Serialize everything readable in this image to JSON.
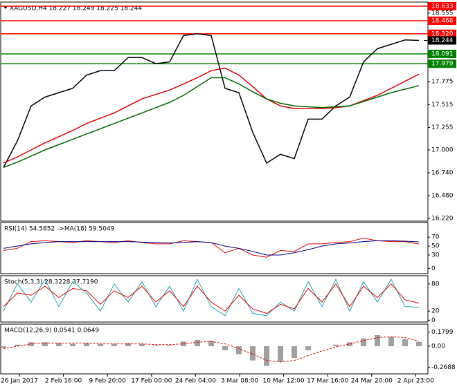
{
  "chart_data": [
    {
      "type": "line",
      "title": "XAGUSD,H4  18.227 18.249 18.225 18.244",
      "ylim": [
        16.19,
        18.68
      ],
      "yticks": [
        {
          "value": 16.22,
          "label": "16.220"
        },
        {
          "value": 16.48,
          "label": "16.480"
        },
        {
          "value": 16.74,
          "label": "16.740"
        },
        {
          "value": 17,
          "label": "17.000"
        },
        17.255,
        17.515,
        17.775,
        18.555
      ],
      "levels": [
        {
          "value": 18.633,
          "label": "18.633",
          "color": "#ff0000"
        },
        {
          "value": 18.468,
          "label": "18.468",
          "color": "#ff0000"
        },
        {
          "value": 18.32,
          "label": "18.320",
          "color": "#ff0000"
        },
        {
          "value": 18.091,
          "label": "18.091",
          "color": "#008000"
        },
        {
          "value": 17.979,
          "label": "17.979",
          "color": "#008000"
        }
      ],
      "price": 18.244,
      "series": [
        {
          "color": "#000000",
          "values": [
            16.8,
            17.1,
            17.5,
            17.6,
            17.65,
            17.7,
            17.85,
            17.9,
            17.9,
            18.05,
            18.05,
            17.98,
            18.0,
            18.3,
            18.32,
            18.3,
            17.7,
            17.65,
            17.2,
            16.85,
            16.95,
            16.9,
            17.35,
            17.35,
            17.5,
            17.6,
            18.0,
            18.15,
            18.2,
            18.25,
            18.244
          ]
        },
        {
          "color": "#e00000",
          "values": [
            16.85,
            16.92,
            17.0,
            17.08,
            17.15,
            17.22,
            17.3,
            17.36,
            17.42,
            17.5,
            17.58,
            17.63,
            17.68,
            17.75,
            17.82,
            17.9,
            17.93,
            17.85,
            17.72,
            17.58,
            17.5,
            17.47,
            17.47,
            17.47,
            17.48,
            17.5,
            17.56,
            17.62,
            17.7,
            17.78,
            17.86
          ]
        },
        {
          "color": "#006400",
          "values": [
            16.8,
            16.86,
            16.93,
            17.0,
            17.06,
            17.12,
            17.18,
            17.24,
            17.3,
            17.36,
            17.42,
            17.48,
            17.54,
            17.62,
            17.72,
            17.82,
            17.82,
            17.75,
            17.66,
            17.58,
            17.53,
            17.5,
            17.49,
            17.48,
            17.49,
            17.5,
            17.55,
            17.6,
            17.65,
            17.69,
            17.73
          ]
        }
      ]
    },
    {
      "type": "line",
      "title": "RSI(14) 54.5852  ->MA(18) 59.5049",
      "ylim": [
        -12,
        103
      ],
      "yticks": [
        70,
        50,
        30,
        0
      ],
      "series": [
        {
          "color": "#e00000",
          "values": [
            40,
            45,
            60,
            62,
            60,
            58,
            62,
            60,
            58,
            62,
            58,
            55,
            55,
            62,
            60,
            58,
            35,
            45,
            30,
            25,
            40,
            38,
            55,
            55,
            58,
            60,
            68,
            62,
            60,
            60,
            54.5852
          ]
        },
        {
          "color": "#000080",
          "values": [
            45,
            50,
            55,
            58,
            60,
            60,
            60,
            60,
            60,
            60,
            59,
            58,
            57,
            58,
            60,
            58,
            50,
            45,
            38,
            30,
            30,
            35,
            42,
            50,
            55,
            57,
            60,
            62,
            62,
            61,
            59.5049
          ]
        }
      ]
    },
    {
      "type": "line",
      "title": "Stoch(5,3,3) 28.3228 37.7190",
      "ylim": [
        -4,
        98
      ],
      "yticks": [
        80,
        20,
        0
      ],
      "series": [
        {
          "color": "#20a0b0",
          "values": [
            20,
            80,
            40,
            90,
            30,
            85,
            60,
            20,
            80,
            40,
            85,
            30,
            75,
            20,
            90,
            30,
            10,
            70,
            15,
            10,
            40,
            20,
            85,
            30,
            90,
            20,
            85,
            40,
            90,
            30,
            28.3228
          ]
        },
        {
          "color": "#e00000",
          "values": [
            30,
            60,
            55,
            75,
            50,
            70,
            65,
            35,
            65,
            50,
            75,
            40,
            65,
            30,
            75,
            40,
            20,
            55,
            25,
            15,
            35,
            25,
            70,
            40,
            80,
            30,
            75,
            50,
            80,
            45,
            37.719
          ]
        }
      ]
    },
    {
      "type": "macd",
      "title": "MACD(12,26,9) 0.0541 0.0649",
      "ylim": [
        -0.35,
        0.28
      ],
      "yticks": [
        0.1799,
        {
          "value": 0,
          "label": "0.00"
        },
        -0.2688
      ],
      "series": [
        {
          "color": "#a0a0a0",
          "style": "bar",
          "values": [
            -0.02,
            0.02,
            0.05,
            0.05,
            0.04,
            0.03,
            0.04,
            0.03,
            0.03,
            0.04,
            0.03,
            0.01,
            0.01,
            0.06,
            0.08,
            0.07,
            -0.05,
            -0.1,
            -0.18,
            -0.25,
            -0.2,
            -0.15,
            -0.05,
            0.0,
            0.02,
            0.05,
            0.1,
            0.14,
            0.12,
            0.09,
            0.0541
          ]
        },
        {
          "color": "#e00000",
          "style": "dash",
          "values": [
            -0.03,
            0.0,
            0.03,
            0.04,
            0.04,
            0.04,
            0.04,
            0.03,
            0.03,
            0.03,
            0.03,
            0.02,
            0.02,
            0.03,
            0.05,
            0.06,
            0.03,
            -0.03,
            -0.1,
            -0.18,
            -0.2,
            -0.18,
            -0.12,
            -0.06,
            -0.01,
            0.03,
            0.07,
            0.11,
            0.12,
            0.11,
            0.0649
          ]
        }
      ]
    }
  ],
  "time_axis": [
    "26 Jan 2017",
    "2 Feb 16:00",
    "9 Feb 20:00",
    "17 Feb 00:00",
    "24 Feb 04:00",
    "3 Mar 08:00",
    "10 Mar 12:00",
    "17 Mar 16:00",
    "24 Mar 20:00",
    "2 Apr 23:00"
  ]
}
